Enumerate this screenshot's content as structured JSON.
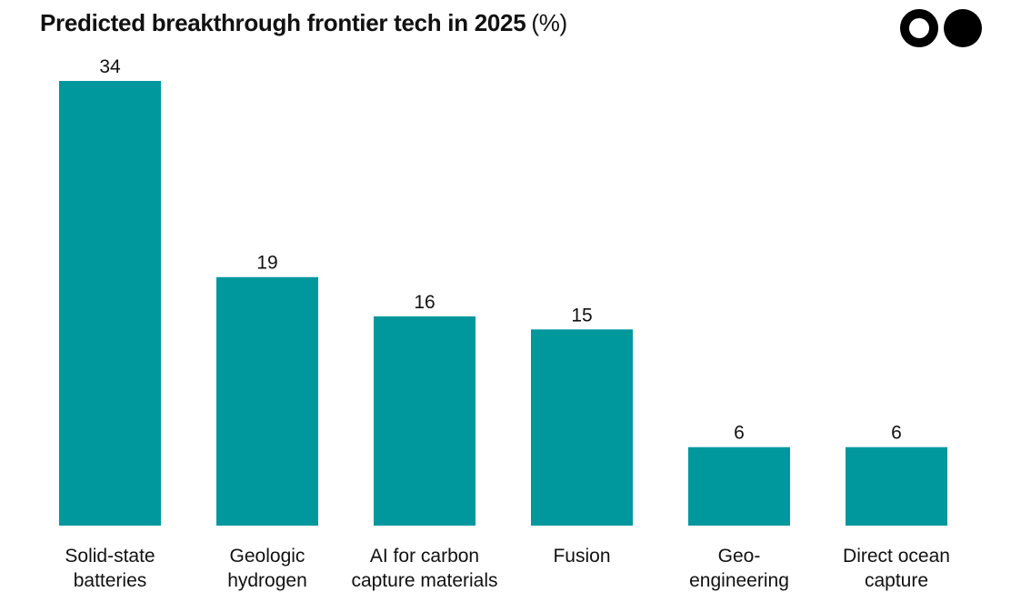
{
  "header": {
    "title": "Predicted breakthrough frontier tech in 2025",
    "unit": "(%)"
  },
  "logo": {
    "icon": "two-circles-logo-icon"
  },
  "colors": {
    "bar": "#00979D",
    "text": "#111111",
    "background": "#FFFFFF"
  },
  "chart_data": {
    "type": "bar",
    "title": "Predicted breakthrough frontier tech in 2025 (%)",
    "categories": [
      [
        "Solid-state",
        "batteries"
      ],
      [
        "Geologic",
        "hydrogen"
      ],
      [
        "AI for carbon",
        "capture materials"
      ],
      [
        "Fusion"
      ],
      [
        "Geo-",
        "engineering"
      ],
      [
        "Direct ocean",
        "capture"
      ]
    ],
    "values": [
      34,
      19,
      16,
      15,
      6,
      6
    ],
    "xlabel": "",
    "ylabel": "",
    "ylim": [
      0,
      34
    ],
    "grid": false,
    "legend": "none",
    "data_labels": true
  }
}
